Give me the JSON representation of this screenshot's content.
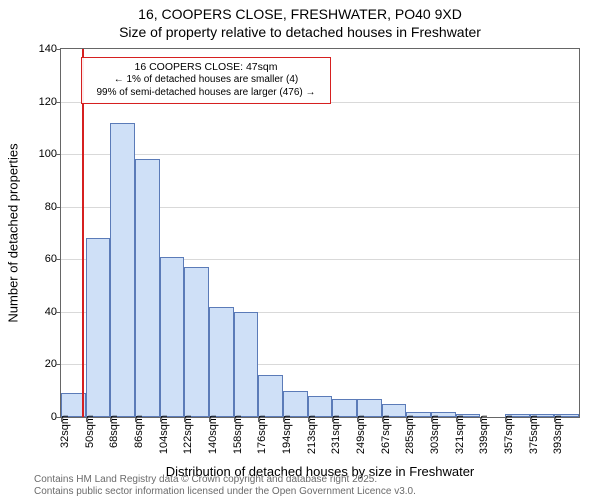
{
  "title_line1": "16, COOPERS CLOSE, FRESHWATER, PO40 9XD",
  "title_line2": "Size of property relative to detached houses in Freshwater",
  "y_axis_label": "Number of detached properties",
  "x_axis_label": "Distribution of detached houses by size in Freshwater",
  "footer_line1": "Contains HM Land Registry data © Crown copyright and database right 2025.",
  "footer_line2": "Contains public sector information licensed under the Open Government Licence v3.0.",
  "annotation": {
    "line1": "16 COOPERS CLOSE: 47sqm",
    "line2": "← 1% of detached houses are smaller (4)",
    "line3": "99% of semi-detached houses are larger (476) →"
  },
  "chart": {
    "type": "histogram",
    "background_color": "#ffffff",
    "grid_color": "#d9d9d9",
    "axis_color": "#666666",
    "bar_fill": "#cfe0f7",
    "bar_stroke": "#5b7bb8",
    "refline_color": "#d62020",
    "ylim": [
      0,
      140
    ],
    "yticks": [
      0,
      20,
      40,
      60,
      80,
      100,
      120,
      140
    ],
    "bin_width_sqm": 18,
    "x_start_sqm": 32,
    "x_end_sqm": 410,
    "x_tick_labels": [
      "32sqm",
      "50sqm",
      "68sqm",
      "86sqm",
      "104sqm",
      "122sqm",
      "140sqm",
      "158sqm",
      "176sqm",
      "194sqm",
      "213sqm",
      "231sqm",
      "249sqm",
      "267sqm",
      "285sqm",
      "303sqm",
      "321sqm",
      "339sqm",
      "357sqm",
      "375sqm",
      "393sqm"
    ],
    "bars": [
      9,
      68,
      112,
      98,
      61,
      57,
      42,
      40,
      16,
      10,
      8,
      7,
      7,
      5,
      2,
      2,
      1,
      0,
      1,
      1,
      1
    ],
    "refline_x_sqm": 47
  },
  "styling": {
    "title_fontsize": 14,
    "axis_label_fontsize": 13,
    "tick_fontsize": 11,
    "annotation_fontsize": 10,
    "footer_fontsize": 10,
    "footer_color": "#6b6b6b"
  }
}
